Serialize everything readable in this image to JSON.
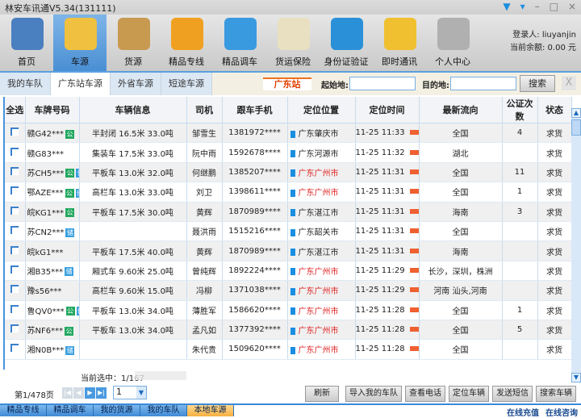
{
  "app": {
    "title": "林安车讯通V5.34(131111)",
    "window_icons": [
      "skin-icon",
      "menu-icon",
      "minimize-icon",
      "maximize-icon",
      "close-icon"
    ]
  },
  "toolbar": [
    {
      "label": "首页",
      "icon": "home-icon",
      "color": "#4a7fc0"
    },
    {
      "label": "车源",
      "icon": "truck-map-icon",
      "color": "#f0c040",
      "active": true
    },
    {
      "label": "货源",
      "icon": "cargo-box-icon",
      "color": "#c89a50"
    },
    {
      "label": "精品专线",
      "icon": "route-truck-icon",
      "color": "#f0a020"
    },
    {
      "label": "精品调车",
      "icon": "phone-truck-icon",
      "color": "#3a9ae0"
    },
    {
      "label": "货运保险",
      "icon": "notepad-icon",
      "color": "#e8e0c0"
    },
    {
      "label": "身份证验证",
      "icon": "id-card-icon",
      "color": "#2a90d8"
    },
    {
      "label": "即时通讯",
      "icon": "mail-icon",
      "color": "#f0c030"
    },
    {
      "label": "个人中心",
      "icon": "user-info-icon",
      "color": "#b0b0b0"
    }
  ],
  "user": {
    "login": "登录人: liuyanjin",
    "balance": "当前余额: 0.00 元"
  },
  "tabs": [
    {
      "label": "我的车队"
    },
    {
      "label": "广东站车源",
      "active": true
    },
    {
      "label": "外省车源"
    },
    {
      "label": "短途车源"
    }
  ],
  "filter": {
    "station": "广东站",
    "from_label": "起始地:",
    "from_value": "",
    "to_label": "目的地:",
    "to_value": "",
    "search": "搜索",
    "close": "X"
  },
  "table": {
    "headers": [
      "全选",
      "车牌号码",
      "车辆信息",
      "司机",
      "跟车手机",
      "定位位置",
      "定位时间",
      "最新流向",
      "公证次数",
      "状态"
    ],
    "rows": [
      {
        "plate": "赣G42***",
        "gong": true,
        "cang": false,
        "info": "半封闭 16.5米 33.0吨",
        "driver": "邹雪生",
        "phone": "1381972****",
        "loc": "广东肇庆市",
        "red": false,
        "time": "11-25 11:33",
        "dir": "全国",
        "count": "4",
        "status": "求货"
      },
      {
        "plate": "赣G83***",
        "gong": false,
        "cang": false,
        "info": "集装车 17.5米 33.0吨",
        "driver": "阮中雨",
        "phone": "1592678****",
        "loc": "广东河源市",
        "red": false,
        "time": "11-25 11:32",
        "dir": "湖北",
        "count": "",
        "status": "求货"
      },
      {
        "plate": "苏CH5***",
        "gong": true,
        "cang": true,
        "info": "平板车 13.0米 32.0吨",
        "driver": "何继鹏",
        "phone": "1385207****",
        "loc": "广东广州市",
        "red": true,
        "time": "11-25 11:31",
        "dir": "全国",
        "count": "11",
        "status": "求货"
      },
      {
        "plate": "鄂AZE***",
        "gong": true,
        "cang": true,
        "info": "高栏车 13.0米 33.0吨",
        "driver": "刘卫",
        "phone": "1398611****",
        "loc": "广东广州市",
        "red": true,
        "time": "11-25 11:31",
        "dir": "全国",
        "count": "1",
        "status": "求货"
      },
      {
        "plate": "皖KG1***",
        "gong": true,
        "cang": false,
        "info": "平板车 17.5米 30.0吨",
        "driver": "黄辉",
        "phone": "1870989****",
        "loc": "广东湛江市",
        "red": false,
        "time": "11-25 11:31",
        "dir": "海南",
        "count": "3",
        "status": "求货"
      },
      {
        "plate": "苏CN2***",
        "gong": false,
        "cang": true,
        "info": "",
        "driver": "聂洪雨",
        "phone": "1515216****",
        "loc": "广东韶关市",
        "red": false,
        "time": "11-25 11:31",
        "dir": "全国",
        "count": "",
        "status": "求货"
      },
      {
        "plate": "皖kG1***",
        "gong": false,
        "cang": false,
        "info": "平板车 17.5米 40.0吨",
        "driver": "黄辉",
        "phone": "1870989****",
        "loc": "广东湛江市",
        "red": false,
        "time": "11-25 11:31",
        "dir": "海南",
        "count": "",
        "status": "求货"
      },
      {
        "plate": "湘B35***",
        "gong": false,
        "cang": true,
        "info": "厢式车 9.60米 25.0吨",
        "driver": "曾纯辉",
        "phone": "1892224****",
        "loc": "广东广州市",
        "red": true,
        "time": "11-25 11:29",
        "dir": "长沙，深圳，株洲",
        "count": "",
        "status": "求货"
      },
      {
        "plate": "豫s56***",
        "gong": false,
        "cang": false,
        "info": "高栏车 9.60米 15.0吨",
        "driver": "冯柳",
        "phone": "1371038****",
        "loc": "广东广州市",
        "red": true,
        "time": "11-25 11:29",
        "dir": "河南 汕头,河南",
        "count": "",
        "status": "求货"
      },
      {
        "plate": "鲁QV0***",
        "gong": true,
        "cang": true,
        "info": "平板车 13.0米 34.0吨",
        "driver": "薄胜军",
        "phone": "1586620****",
        "loc": "广东广州市",
        "red": true,
        "time": "11-25 11:28",
        "dir": "全国",
        "count": "1",
        "status": "求货"
      },
      {
        "plate": "苏NF6***",
        "gong": true,
        "cang": false,
        "info": "平板车 13.0米 34.0吨",
        "driver": "孟凡如",
        "phone": "1377392****",
        "loc": "广东广州市",
        "red": true,
        "time": "11-25 11:28",
        "dir": "全国",
        "count": "5",
        "status": "求货"
      },
      {
        "plate": "湘N0B***",
        "gong": false,
        "cang": true,
        "info": "",
        "driver": "朱代贵",
        "phone": "1509620****",
        "loc": "广东广州市",
        "red": true,
        "time": "11-25 11:28",
        "dir": "全国",
        "count": "",
        "status": "求货"
      }
    ],
    "badges": {
      "gong": "公",
      "cang": "储"
    }
  },
  "status": {
    "selected": "当前选中：1/167",
    "page_info": "第1/478页",
    "page_value": "1"
  },
  "actions": [
    "刷新",
    "导入我的车队",
    "查看电话",
    "定位车辆",
    "发送短信",
    "搜索车辆"
  ],
  "bottom_tabs": [
    {
      "label": "精品专线"
    },
    {
      "label": "精品调车"
    },
    {
      "label": "我的货源"
    },
    {
      "label": "我的车队"
    },
    {
      "label": "本地车源",
      "active": true
    }
  ],
  "bottom_links": [
    "在线充值",
    "在线咨询"
  ]
}
